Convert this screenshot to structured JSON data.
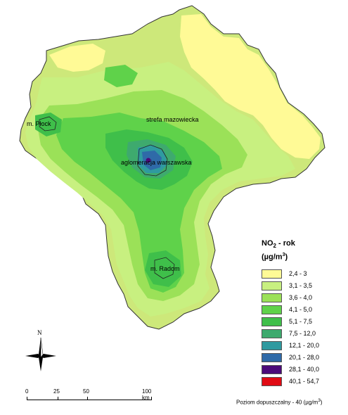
{
  "map": {
    "region_labels": {
      "plock": "m. Płock",
      "strefa": "strefa mazowiecka",
      "warszawa": "aglomeracja warszawska",
      "radom": "m. Radom"
    },
    "colors": {
      "background": "#cde87a",
      "class_1": "#fffa96",
      "class_2": "#c8f080",
      "class_3": "#9be158",
      "class_4": "#5fd24a",
      "class_5": "#3fbf4a",
      "class_6": "#3eaa6e",
      "class_7": "#2f9aa0",
      "class_8": "#2f6aa8",
      "class_9": "#4b0a7a",
      "class_10": "#e00b14"
    }
  },
  "legend": {
    "title_main": "NO",
    "title_sub": "2",
    "title_rest": " - rok",
    "unit_open": "(µg/m",
    "unit_sup": "3",
    "unit_close": ")",
    "classes": [
      {
        "label": "2,4 - 3",
        "color": "#fffa96"
      },
      {
        "label": "3,1 - 3,5",
        "color": "#c8f080"
      },
      {
        "label": "3,6 - 4,0",
        "color": "#9be158"
      },
      {
        "label": "4,1 - 5,0",
        "color": "#5fd24a"
      },
      {
        "label": "5,1 - 7,5",
        "color": "#3fbf4a"
      },
      {
        "label": "7,5 - 12,0",
        "color": "#3eaa6e"
      },
      {
        "label": "12,1 - 20,0",
        "color": "#2f9aa0"
      },
      {
        "label": "20,1 - 28,0",
        "color": "#2f6aa8"
      },
      {
        "label": "28,1 - 40,0",
        "color": "#4b0a7a"
      },
      {
        "label": "40,1 - 54,7",
        "color": "#e00b14"
      }
    ]
  },
  "north_arrow": {
    "letter": "N"
  },
  "scale": {
    "ticks": [
      "0",
      "25",
      "50",
      "100 km"
    ]
  },
  "footer": {
    "note_prefix": "Poziom dopuszczalny - 40 (µg/m",
    "note_sup": "3",
    "note_suffix": ")"
  }
}
